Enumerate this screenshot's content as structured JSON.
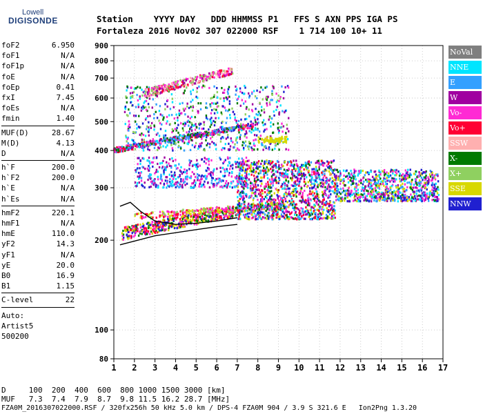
{
  "logo": {
    "line1": "Lowell",
    "line2": "DIGISONDE"
  },
  "header": {
    "labels": "Station    YYYY DAY   DDD HHMMSS P1   FFS S AXN PPS IGA PS",
    "values": "Fortaleza 2016 Nov02 307 022000 RSF    1 714 100 10+ 11"
  },
  "params": {
    "group1": [
      {
        "name": "foF2",
        "value": "6.950"
      },
      {
        "name": "foF1",
        "value": "N/A"
      },
      {
        "name": "foF1p",
        "value": "N/A"
      },
      {
        "name": "foE",
        "value": "N/A"
      },
      {
        "name": "foEp",
        "value": "0.41"
      },
      {
        "name": "fxI",
        "value": "7.45"
      },
      {
        "name": "foEs",
        "value": "N/A"
      },
      {
        "name": "fmin",
        "value": "1.40"
      }
    ],
    "group2": [
      {
        "name": "MUF(D)",
        "value": "28.67"
      },
      {
        "name": "M(D)",
        "value": "4.13"
      },
      {
        "name": "D",
        "value": "N/A"
      }
    ],
    "group3": [
      {
        "name": "h`F",
        "value": "200.0"
      },
      {
        "name": "h`F2",
        "value": "200.0"
      },
      {
        "name": "h`E",
        "value": "N/A"
      },
      {
        "name": "h`Es",
        "value": "N/A"
      }
    ],
    "group4": [
      {
        "name": "hmF2",
        "value": "220.1"
      },
      {
        "name": "hmF1",
        "value": "N/A"
      },
      {
        "name": "hmE",
        "value": "110.0"
      },
      {
        "name": "yF2",
        "value": "14.3"
      },
      {
        "name": "yF1",
        "value": "N/A"
      },
      {
        "name": "yE",
        "value": "20.0"
      },
      {
        "name": "B0",
        "value": "16.9"
      },
      {
        "name": "B1",
        "value": "1.15"
      }
    ],
    "group5": [
      {
        "name": "C-level",
        "value": "22"
      }
    ],
    "auto": [
      "Auto:",
      "Artist5",
      "500200"
    ]
  },
  "legend": [
    {
      "label": "NoVal",
      "color": "#7f7f7f"
    },
    {
      "label": "NNE",
      "color": "#00e5ff"
    },
    {
      "label": "E",
      "color": "#33a0ff"
    },
    {
      "label": "W",
      "color": "#a000a0"
    },
    {
      "label": "Vo-",
      "color": "#ff2ad4"
    },
    {
      "label": "Vo+",
      "color": "#ff0033"
    },
    {
      "label": "SSW",
      "color": "#ffb0b0"
    },
    {
      "label": "X-",
      "color": "#007a00"
    },
    {
      "label": "X+",
      "color": "#8fd060"
    },
    {
      "label": "SSE",
      "color": "#d8d800"
    },
    {
      "label": "NNW",
      "color": "#2020d0"
    }
  ],
  "footer": {
    "d_row": "D     100  200  400  600  800 1000 1500 3000 [km]",
    "muf_row": "MUF   7.3  7.4  7.9  8.7  9.8 11.5 16.2 28.7 [MHz]",
    "info": "FZA0M_2016307022000.RSF / 320fx256h 50 kHz 5.0 km / DPS-4 FZA0M 904 / 3.9 S 321.6 E   Ion2Png 1.3.20"
  },
  "chart_data": {
    "type": "scatter",
    "xlabel": "",
    "ylabel": "",
    "xlim": [
      1,
      17
    ],
    "ylim": [
      80,
      900
    ],
    "y_scale": "log",
    "x_ticks": [
      1,
      2,
      3,
      4,
      5,
      6,
      7,
      8,
      9,
      10,
      11,
      12,
      13,
      14,
      15,
      16,
      17
    ],
    "y_ticks": [
      80,
      100,
      200,
      300,
      400,
      500,
      600,
      700,
      800,
      900
    ],
    "grid": true,
    "clusters": [
      {
        "name": "F-layer base trace",
        "x": [
          1.4,
          7.0
        ],
        "y": [
          210,
          250
        ],
        "spread": 10,
        "count": 520,
        "colors": [
          "Vo+",
          "Vo-",
          "X-",
          "NNW",
          "SSE"
        ]
      },
      {
        "name": "F-layer O-trace upper",
        "x": [
          2.0,
          9.4
        ],
        "y": [
          240,
          262
        ],
        "spread": 6,
        "count": 260,
        "colors": [
          "SSE",
          "X+",
          "Vo-",
          "Vo+"
        ]
      },
      {
        "name": "spread-F main",
        "x": [
          7.0,
          11.8
        ],
        "y": [
          235,
          370
        ],
        "spread": 0,
        "count": 1300,
        "colors": [
          "Vo+",
          "Vo-",
          "W",
          "NNW",
          "E",
          "NNE",
          "X-",
          "SSE"
        ]
      },
      {
        "name": "spread-F high freq",
        "x": [
          11.8,
          16.8
        ],
        "y": [
          270,
          345
        ],
        "spread": 0,
        "count": 780,
        "colors": [
          "W",
          "E",
          "NNE",
          "Vo-",
          "NNW",
          "X-",
          "SSE"
        ]
      },
      {
        "name": "multihop 2F trace",
        "x": [
          1.0,
          7.8
        ],
        "y": [
          400,
          485
        ],
        "spread": 8,
        "count": 440,
        "colors": [
          "Vo+",
          "X-",
          "Vo-",
          "NNW",
          "E"
        ]
      },
      {
        "name": "multihop cloud",
        "x": [
          1.5,
          9.5
        ],
        "y": [
          400,
          660
        ],
        "spread": 0,
        "count": 760,
        "colors": [
          "Vo-",
          "W",
          "E",
          "NNW",
          "X+",
          "X-",
          "NNE"
        ]
      },
      {
        "name": "3F trace",
        "x": [
          2.5,
          6.8
        ],
        "y": [
          620,
          740
        ],
        "spread": 20,
        "count": 300,
        "colors": [
          "Vo-",
          "SSW",
          "Vo+",
          "X+",
          "W"
        ]
      },
      {
        "name": "oblique echoes",
        "x": [
          2.0,
          7.5
        ],
        "y": [
          300,
          380
        ],
        "spread": 0,
        "count": 420,
        "colors": [
          "NNW",
          "E",
          "W",
          "Vo-",
          "NNE"
        ]
      },
      {
        "name": "SSE patch",
        "x": [
          8.0,
          9.4
        ],
        "y": [
          425,
          445
        ],
        "spread": 0,
        "count": 70,
        "colors": [
          "SSE"
        ]
      }
    ],
    "profile_curve": {
      "x": [
        1.3,
        3.0,
        5.0,
        6.0,
        7.0
      ],
      "y": [
        193,
        207,
        217,
        222,
        226
      ]
    },
    "virtual_height_curve": {
      "x": [
        1.3,
        1.8,
        2.3,
        3.0,
        4.0,
        5.0,
        6.0,
        7.0
      ],
      "y": [
        260,
        268,
        250,
        232,
        226,
        228,
        232,
        238
      ]
    }
  }
}
